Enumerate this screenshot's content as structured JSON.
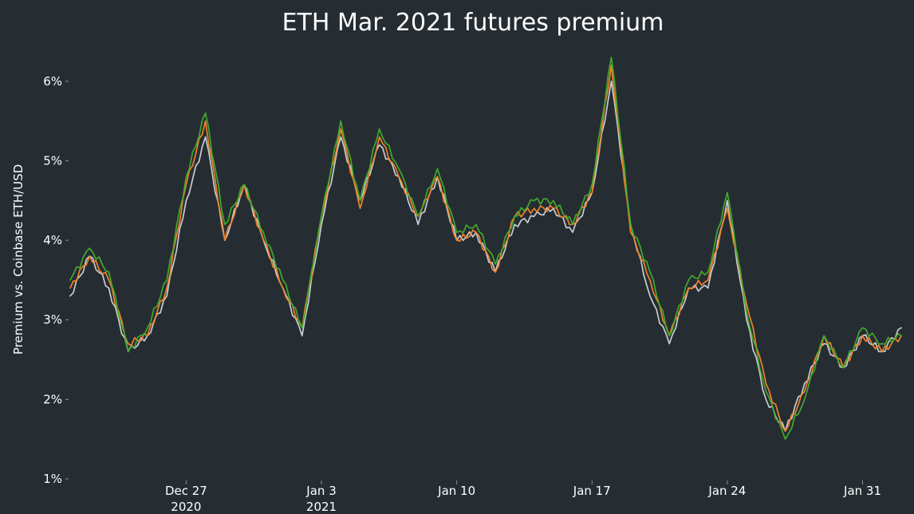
{
  "chart_data": {
    "type": "line",
    "title": "ETH Mar. 2021 futures premium",
    "xlabel": "",
    "ylabel": "Premium vs. Coinbase ETH/USD",
    "ylim": [
      1,
      6.5
    ],
    "x_range": [
      "2020-12-21",
      "2021-02-02"
    ],
    "y_ticks": [
      {
        "value": 1,
        "label": "1%"
      },
      {
        "value": 2,
        "label": "2%"
      },
      {
        "value": 3,
        "label": "3%"
      },
      {
        "value": 4,
        "label": "4%"
      },
      {
        "value": 5,
        "label": "5%"
      },
      {
        "value": 6,
        "label": "6%"
      }
    ],
    "x_ticks": [
      {
        "date": "2020-12-27",
        "label": "Dec 27",
        "sublabel": "2020"
      },
      {
        "date": "2021-01-03",
        "label": "Jan 3",
        "sublabel": "2021"
      },
      {
        "date": "2021-01-10",
        "label": "Jan 10",
        "sublabel": ""
      },
      {
        "date": "2021-01-17",
        "label": "Jan 17",
        "sublabel": ""
      },
      {
        "date": "2021-01-24",
        "label": "Jan 24",
        "sublabel": ""
      },
      {
        "date": "2021-01-31",
        "label": "Jan 31",
        "sublabel": ""
      }
    ],
    "grid": false,
    "legend": "none",
    "colors": [
      "#c9ccd1",
      "#f0822a",
      "#43a82c"
    ],
    "x": [
      "2020-12-21",
      "2020-12-22",
      "2020-12-23",
      "2020-12-24",
      "2020-12-25",
      "2020-12-26",
      "2020-12-27",
      "2020-12-28",
      "2020-12-29",
      "2020-12-30",
      "2020-12-31",
      "2021-01-01",
      "2021-01-02",
      "2021-01-03",
      "2021-01-04",
      "2021-01-05",
      "2021-01-06",
      "2021-01-07",
      "2021-01-08",
      "2021-01-09",
      "2021-01-10",
      "2021-01-11",
      "2021-01-12",
      "2021-01-13",
      "2021-01-14",
      "2021-01-15",
      "2021-01-16",
      "2021-01-17",
      "2021-01-18",
      "2021-01-19",
      "2021-01-20",
      "2021-01-21",
      "2021-01-22",
      "2021-01-23",
      "2021-01-24",
      "2021-01-25",
      "2021-01-26",
      "2021-01-27",
      "2021-01-28",
      "2021-01-29",
      "2021-01-30",
      "2021-01-31",
      "2021-02-01",
      "2021-02-02"
    ],
    "series": [
      {
        "values": [
          3.3,
          3.8,
          3.4,
          2.6,
          2.8,
          3.3,
          4.5,
          5.3,
          4.0,
          4.7,
          4.0,
          3.4,
          2.8,
          4.2,
          5.3,
          4.5,
          5.2,
          4.8,
          4.2,
          4.8,
          4.0,
          4.1,
          3.6,
          4.2,
          4.3,
          4.4,
          4.1,
          4.6,
          6.0,
          4.2,
          3.3,
          2.7,
          3.4,
          3.4,
          4.5,
          3.0,
          2.0,
          1.6,
          2.2,
          2.7,
          2.4,
          2.8,
          2.6,
          2.9
        ]
      },
      {
        "values": [
          3.4,
          3.8,
          3.5,
          2.7,
          2.8,
          3.4,
          4.7,
          5.5,
          4.0,
          4.7,
          4.0,
          3.4,
          2.9,
          4.3,
          5.4,
          4.4,
          5.3,
          4.8,
          4.3,
          4.8,
          4.0,
          4.1,
          3.6,
          4.3,
          4.4,
          4.4,
          4.2,
          4.6,
          6.2,
          4.1,
          3.5,
          2.8,
          3.4,
          3.5,
          4.4,
          3.2,
          2.2,
          1.6,
          2.1,
          2.8,
          2.4,
          2.8,
          2.6,
          2.8
        ]
      },
      {
        "values": [
          3.5,
          3.9,
          3.6,
          2.6,
          2.9,
          3.5,
          4.8,
          5.6,
          4.2,
          4.7,
          4.1,
          3.5,
          2.9,
          4.3,
          5.5,
          4.5,
          5.4,
          4.9,
          4.3,
          4.9,
          4.1,
          4.2,
          3.7,
          4.3,
          4.5,
          4.5,
          4.2,
          4.7,
          6.3,
          4.2,
          3.6,
          2.8,
          3.5,
          3.6,
          4.6,
          3.1,
          2.1,
          1.5,
          2.0,
          2.8,
          2.4,
          2.9,
          2.7,
          2.8
        ]
      }
    ]
  }
}
